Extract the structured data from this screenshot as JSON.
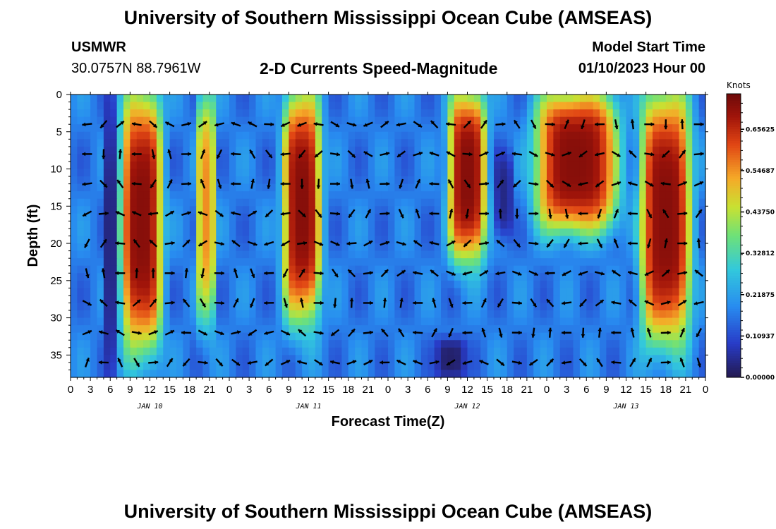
{
  "header": {
    "title": "University of Southern Mississippi Ocean Cube (AMSEAS)",
    "station_name": "USMWR",
    "coordinates": "30.0757N  88.7961W",
    "plot_title": "2-D Currents Speed-Magnitude",
    "model_start_label": "Model Start Time",
    "model_start_value": "01/10/2023 Hour 00"
  },
  "footer": {
    "title": "University of Southern Mississippi Ocean Cube (AMSEAS)"
  },
  "colors": {
    "arrow": "#000000",
    "background": "#ffffff"
  },
  "chart_data": {
    "type": "heatmap",
    "title": "2-D Currents Speed-Magnitude",
    "xlabel": "Forecast Time(Z)",
    "ylabel": "Depth (ft)",
    "x_range_hours": [
      0,
      96
    ],
    "y_range_ft": [
      0,
      38
    ],
    "x_ticks": [
      {
        "h": 0,
        "label": "0"
      },
      {
        "h": 3,
        "label": "3"
      },
      {
        "h": 6,
        "label": "6"
      },
      {
        "h": 9,
        "label": "9"
      },
      {
        "h": 12,
        "label": "12"
      },
      {
        "h": 15,
        "label": "15"
      },
      {
        "h": 18,
        "label": "18"
      },
      {
        "h": 21,
        "label": "21"
      },
      {
        "h": 24,
        "label": "0"
      },
      {
        "h": 27,
        "label": "3"
      },
      {
        "h": 30,
        "label": "6"
      },
      {
        "h": 33,
        "label": "9"
      },
      {
        "h": 36,
        "label": "12"
      },
      {
        "h": 39,
        "label": "15"
      },
      {
        "h": 42,
        "label": "18"
      },
      {
        "h": 45,
        "label": "21"
      },
      {
        "h": 48,
        "label": "0"
      },
      {
        "h": 51,
        "label": "3"
      },
      {
        "h": 54,
        "label": "6"
      },
      {
        "h": 57,
        "label": "9"
      },
      {
        "h": 60,
        "label": "12"
      },
      {
        "h": 63,
        "label": "15"
      },
      {
        "h": 66,
        "label": "18"
      },
      {
        "h": 69,
        "label": "21"
      },
      {
        "h": 72,
        "label": "0"
      },
      {
        "h": 75,
        "label": "3"
      },
      {
        "h": 78,
        "label": "6"
      },
      {
        "h": 81,
        "label": "9"
      },
      {
        "h": 84,
        "label": "12"
      },
      {
        "h": 87,
        "label": "15"
      },
      {
        "h": 90,
        "label": "18"
      },
      {
        "h": 93,
        "label": "21"
      },
      {
        "h": 96,
        "label": "0"
      }
    ],
    "day_labels": [
      {
        "h": 12,
        "label": "JAN 10"
      },
      {
        "h": 36,
        "label": "JAN 11"
      },
      {
        "h": 60,
        "label": "JAN 12"
      },
      {
        "h": 84,
        "label": "JAN 13"
      }
    ],
    "y_ticks": [
      0,
      5,
      10,
      15,
      20,
      25,
      30,
      35
    ],
    "colorbar": {
      "label": "Knots",
      "min": 0.0,
      "max": 0.75,
      "tick_labels": [
        "0.00000",
        "0.10937",
        "0.21875",
        "0.32812",
        "0.43750",
        "0.54687",
        "0.65625"
      ],
      "tick_values": [
        0.0,
        0.109375,
        0.21875,
        0.328125,
        0.4375,
        0.546875,
        0.65625
      ]
    },
    "speed_features_knots": [
      {
        "name": "band-jan10-06-14",
        "h_range": [
          7.5,
          14
        ],
        "depth_range": [
          0,
          34
        ],
        "peak": 0.72
      },
      {
        "name": "band-jan10-19-22",
        "h_range": [
          19,
          22
        ],
        "depth_range": [
          0,
          30
        ],
        "peak": 0.55
      },
      {
        "name": "band-jan11-08-14",
        "h_range": [
          32,
          38
        ],
        "depth_range": [
          0,
          30
        ],
        "peak": 0.72
      },
      {
        "name": "band-jan12-09-15",
        "h_range": [
          57,
          63
        ],
        "depth_range": [
          0,
          22
        ],
        "peak": 0.72
      },
      {
        "name": "band-jan12-21-jan13-11",
        "h_range": [
          70,
          83
        ],
        "depth_range": [
          0,
          18
        ],
        "peak": 0.72
      },
      {
        "name": "band-jan13-13-22",
        "h_range": [
          86,
          94
        ],
        "depth_range": [
          0,
          33
        ],
        "peak": 0.72
      },
      {
        "name": "low-jan10-06",
        "h_range": [
          5,
          7
        ],
        "depth_range": [
          0,
          38
        ],
        "peak": 0.03
      },
      {
        "name": "low-jan12-18",
        "h_range": [
          64,
          67
        ],
        "depth_range": [
          8,
          19
        ],
        "peak": 0.04
      },
      {
        "name": "low-jan12-09-bottom",
        "h_range": [
          55,
          60
        ],
        "depth_range": [
          33,
          38
        ],
        "peak": 0.02
      }
    ]
  }
}
